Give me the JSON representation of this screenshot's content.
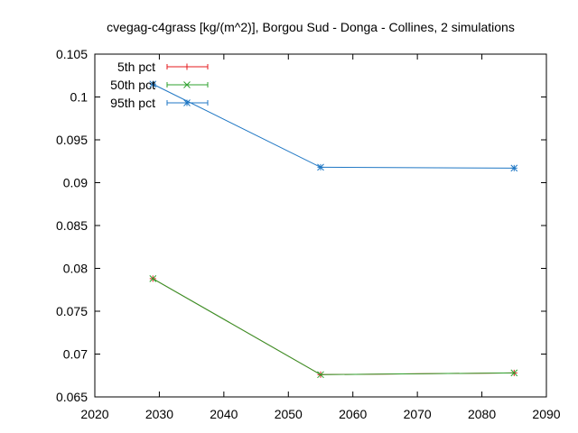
{
  "chart_data": {
    "type": "line",
    "title": "cvegag-c4grass [kg/(m^2)], Borgou Sud - Donga - Collines, 2 simulations",
    "xlabel": "",
    "ylabel": "",
    "xlim": [
      2020,
      2090
    ],
    "ylim": [
      0.065,
      0.105
    ],
    "x_ticks": [
      2020,
      2030,
      2040,
      2050,
      2060,
      2070,
      2080,
      2090
    ],
    "y_ticks": [
      "0.065",
      "0.07",
      "0.075",
      "0.08",
      "0.085",
      "0.09",
      "0.095",
      "0.1",
      "0.105"
    ],
    "grid": false,
    "legend_position": "top-left",
    "series": [
      {
        "name": "5th pct",
        "color": "#e41a1c",
        "marker": "plus",
        "points": [
          [
            2029,
            0.0788
          ],
          [
            2055,
            0.0676
          ],
          [
            2085,
            0.0678
          ]
        ]
      },
      {
        "name": "50th pct",
        "color": "#2ca02c",
        "marker": "cross",
        "points": [
          [
            2029,
            0.0788
          ],
          [
            2055,
            0.0676
          ],
          [
            2085,
            0.0678
          ]
        ]
      },
      {
        "name": "95th pct",
        "color": "#1f77c4",
        "marker": "star",
        "points": [
          [
            2029,
            0.1015
          ],
          [
            2055,
            0.0918
          ],
          [
            2085,
            0.0917
          ]
        ]
      }
    ]
  }
}
